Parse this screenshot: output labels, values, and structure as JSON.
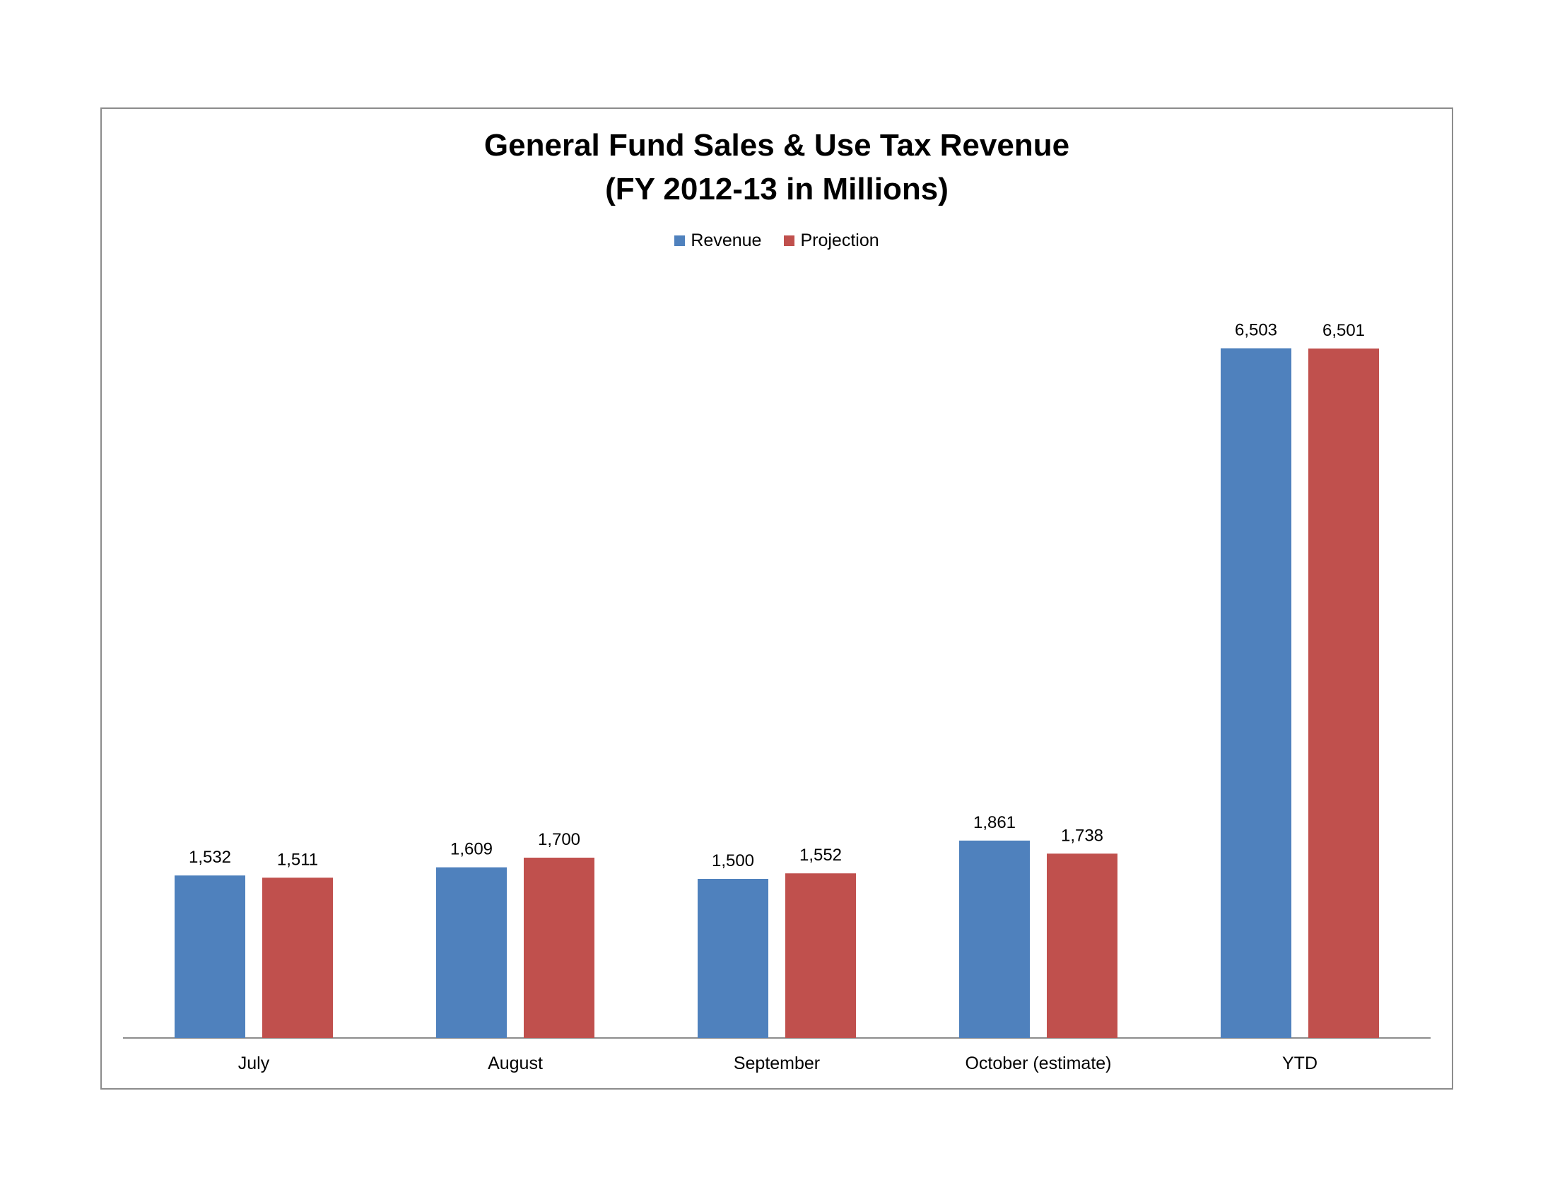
{
  "chart_data": {
    "type": "bar",
    "title": "General Fund Sales & Use Tax Revenue",
    "subtitle": "(FY 2012-13 in Millions)",
    "categories": [
      "July",
      "August",
      "September",
      "October (estimate)",
      "YTD"
    ],
    "series": [
      {
        "name": "Revenue",
        "color": "#4f81bd",
        "values": [
          1532,
          1609,
          1500,
          1861,
          6503
        ],
        "labels": [
          "1,532",
          "1,609",
          "1,500",
          "1,861",
          "6,503"
        ]
      },
      {
        "name": "Projection",
        "color": "#c0504d",
        "values": [
          1511,
          1700,
          1552,
          1738,
          6501
        ],
        "labels": [
          "1,511",
          "1,700",
          "1,552",
          "1,738",
          "6,501"
        ]
      }
    ],
    "xlabel": "",
    "ylabel": "",
    "ylim": [
      0,
      7000
    ],
    "grid": false,
    "legend_position": "top"
  }
}
